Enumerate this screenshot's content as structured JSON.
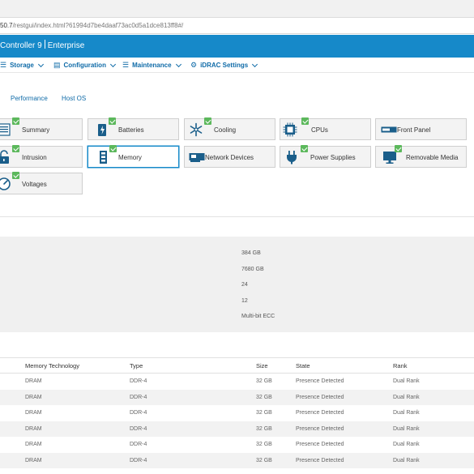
{
  "browser": {
    "url_host": "50.7",
    "url_path": "/restgui/index.html?61994d7be4daaf73ac0d5a1dce813ff8#/"
  },
  "brand": {
    "product": "Controller 9",
    "edition": "Enterprise"
  },
  "nav": [
    {
      "label": "Storage",
      "icon": "storage-icon"
    },
    {
      "label": "Configuration",
      "icon": "configuration-icon"
    },
    {
      "label": "Maintenance",
      "icon": "maintenance-icon"
    },
    {
      "label": "iDRAC Settings",
      "icon": "gear-icon"
    }
  ],
  "subtabs": [
    "Performance",
    "Host OS"
  ],
  "tiles": [
    {
      "label": "Summary",
      "icon": "summary-icon",
      "status": "ok"
    },
    {
      "label": "Batteries",
      "icon": "battery-icon",
      "status": "ok"
    },
    {
      "label": "Cooling",
      "icon": "fan-icon",
      "status": "ok"
    },
    {
      "label": "CPUs",
      "icon": "cpu-icon",
      "status": "ok"
    },
    {
      "label": "Front Panel",
      "icon": "front-panel-icon",
      "status": "none"
    },
    {
      "label": "Intrusion",
      "icon": "lock-icon",
      "status": "ok"
    },
    {
      "label": "Memory",
      "icon": "memory-icon",
      "status": "ok",
      "active": true
    },
    {
      "label": "Network Devices",
      "icon": "network-card-icon",
      "status": "none"
    },
    {
      "label": "Power Supplies",
      "icon": "power-plug-icon",
      "status": "ok"
    },
    {
      "label": "Removable Media",
      "icon": "monitor-icon",
      "status": "ok"
    },
    {
      "label": "Voltages",
      "icon": "gauge-icon",
      "status": "ok"
    }
  ],
  "memory_info": {
    "values": [
      "384 GB",
      "7680 GB",
      "24",
      "12",
      "Multi-bit ECC"
    ]
  },
  "table": {
    "headers": [
      "Memory Technology",
      "Type",
      "Size",
      "State",
      "Rank"
    ],
    "rows": [
      [
        "DRAM",
        "DDR-4",
        "32 GB",
        "Presence Detected",
        "Dual Rank"
      ],
      [
        "DRAM",
        "DDR-4",
        "32 GB",
        "Presence Detected",
        "Dual Rank"
      ],
      [
        "DRAM",
        "DDR-4",
        "32 GB",
        "Presence Detected",
        "Dual Rank"
      ],
      [
        "DRAM",
        "DDR-4",
        "32 GB",
        "Presence Detected",
        "Dual Rank"
      ],
      [
        "DRAM",
        "DDR-4",
        "32 GB",
        "Presence Detected",
        "Dual Rank"
      ],
      [
        "DRAM",
        "DDR-4",
        "32 GB",
        "Presence Detected",
        "Dual Rank"
      ]
    ]
  },
  "colors": {
    "brand_blue": "#1689c9",
    "link_blue": "#0f6ba8",
    "status_ok": "#5cb85c"
  }
}
